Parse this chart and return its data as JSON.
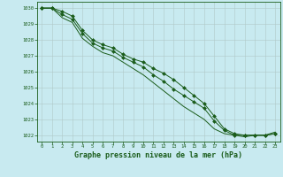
{
  "title": "Graphe pression niveau de la mer (hPa)",
  "background_color": "#c8eaf0",
  "grid_color": "#b0c8c8",
  "line_color": "#1a5c1a",
  "marker_color": "#1a5c1a",
  "xlim": [
    -0.5,
    23.5
  ],
  "ylim": [
    1021.6,
    1030.4
  ],
  "yticks": [
    1022,
    1023,
    1024,
    1025,
    1026,
    1027,
    1028,
    1029,
    1030
  ],
  "xticks": [
    0,
    1,
    2,
    3,
    4,
    5,
    6,
    7,
    8,
    9,
    10,
    11,
    12,
    13,
    14,
    15,
    16,
    17,
    18,
    19,
    20,
    21,
    22,
    23
  ],
  "series": [
    {
      "x": [
        0,
        1,
        2,
        3,
        4,
        5,
        6,
        7,
        8,
        9,
        10,
        11,
        12,
        13,
        14,
        15,
        16,
        17,
        18,
        19,
        20,
        21,
        22,
        23
      ],
      "y": [
        1030.0,
        1030.0,
        1029.6,
        1029.3,
        1028.4,
        1027.8,
        1027.5,
        1027.3,
        1026.9,
        1026.6,
        1026.3,
        1025.8,
        1025.4,
        1024.9,
        1024.5,
        1024.1,
        1023.7,
        1022.9,
        1022.3,
        1022.0,
        1022.0,
        1022.0,
        1022.0,
        1022.1
      ],
      "has_marker": true,
      "marker": "D"
    },
    {
      "x": [
        0,
        1,
        2,
        3,
        4,
        5,
        6,
        7,
        8,
        9,
        10,
        11,
        12,
        13,
        14,
        15,
        16,
        17,
        18,
        19,
        20,
        21,
        22,
        23
      ],
      "y": [
        1030.0,
        1030.0,
        1029.4,
        1029.1,
        1028.1,
        1027.6,
        1027.2,
        1027.0,
        1026.6,
        1026.2,
        1025.8,
        1025.3,
        1024.8,
        1024.3,
        1023.8,
        1023.4,
        1023.0,
        1022.4,
        1022.1,
        1022.0,
        1021.9,
        1022.0,
        1022.0,
        1022.2
      ],
      "has_marker": false,
      "marker": null
    },
    {
      "x": [
        0,
        1,
        2,
        3,
        4,
        5,
        6,
        7,
        8,
        9,
        10,
        11,
        12,
        13,
        14,
        15,
        16,
        17,
        18,
        19,
        20,
        21,
        22,
        23
      ],
      "y": [
        1030.0,
        1030.0,
        1029.8,
        1029.5,
        1028.6,
        1028.0,
        1027.7,
        1027.5,
        1027.1,
        1026.8,
        1026.6,
        1026.2,
        1025.9,
        1025.5,
        1025.0,
        1024.5,
        1024.0,
        1023.2,
        1022.4,
        1022.1,
        1022.0,
        1022.0,
        1022.0,
        1022.1
      ],
      "has_marker": true,
      "marker": "D"
    }
  ],
  "ylabel_fontsize": 5,
  "xlabel_fontsize": 6,
  "tick_fontsize": 4,
  "linewidth": 0.7,
  "markersize": 2.0
}
